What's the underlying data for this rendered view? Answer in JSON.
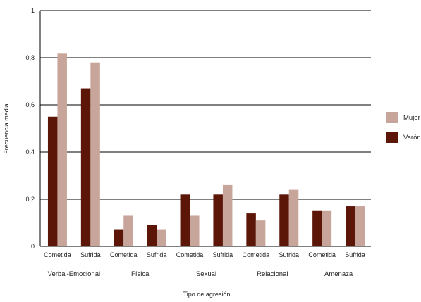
{
  "colors": {
    "mujer": "#c8a59b",
    "varon": "#5c1608",
    "grid": "#000000"
  },
  "chart_data": {
    "type": "bar",
    "title": "",
    "xlabel": "Tipo de agresión",
    "ylabel": "Frecuencia media",
    "ylim": [
      0,
      1
    ],
    "yticks": [
      0,
      0.2,
      0.4,
      0.6,
      0.8,
      1
    ],
    "ytick_labels": [
      "0",
      "0,2",
      "0,4",
      "0,6",
      "0,8",
      "1"
    ],
    "grid": true,
    "legend_position": "right",
    "groups": [
      "Verbal-Emocional",
      "Física",
      "Sexual",
      "Relacional",
      "Amenaza"
    ],
    "subcategories": [
      "Cometida",
      "Sufrida"
    ],
    "categories": [
      "Verbal-Emocional Cometida",
      "Verbal-Emocional Sufrida",
      "Física Cometida",
      "Física Sufrida",
      "Sexual Cometida",
      "Sexual Sufrida",
      "Relacional Cometida",
      "Relacional Sufrida",
      "Amenaza Cometida",
      "Amenaza Sufrida"
    ],
    "series": [
      {
        "name": "Varón",
        "values": [
          0.55,
          0.67,
          0.07,
          0.09,
          0.22,
          0.22,
          0.14,
          0.22,
          0.15,
          0.17
        ]
      },
      {
        "name": "Mujer",
        "values": [
          0.82,
          0.78,
          0.13,
          0.07,
          0.13,
          0.26,
          0.11,
          0.24,
          0.15,
          0.17
        ]
      }
    ],
    "legend": [
      "Mujer",
      "Varón"
    ]
  }
}
